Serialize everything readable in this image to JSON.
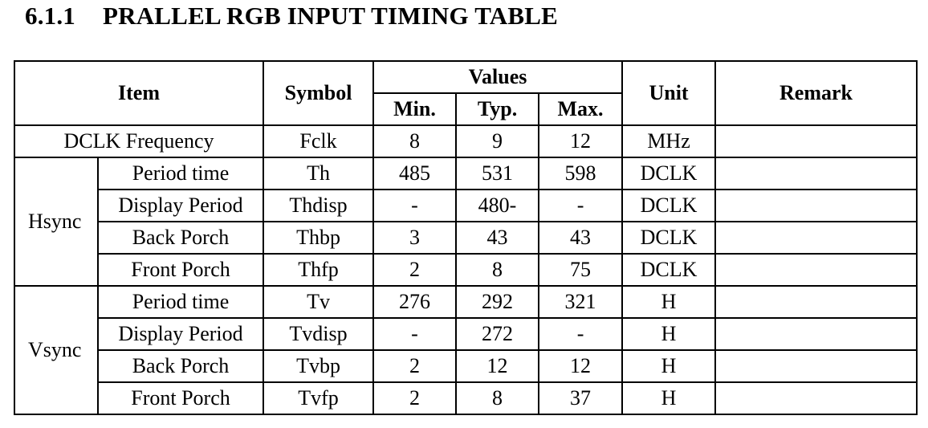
{
  "heading": {
    "number": "6.1.1",
    "title": "PRALLEL RGB INPUT TIMING TABLE"
  },
  "table": {
    "headers": {
      "item": "Item",
      "symbol": "Symbol",
      "values": "Values",
      "min": "Min.",
      "typ": "Typ.",
      "max": "Max.",
      "unit": "Unit",
      "remark": "Remark"
    },
    "dclk": {
      "item": "DCLK Frequency",
      "symbol": "Fclk",
      "min": "8",
      "typ": "9",
      "max": "12",
      "unit": "MHz",
      "remark": ""
    },
    "groups": [
      {
        "label": "Hsync",
        "rows": [
          {
            "item": "Period time",
            "symbol": "Th",
            "min": "485",
            "typ": "531",
            "max": "598",
            "unit": "DCLK",
            "remark": ""
          },
          {
            "item": "Display Period",
            "symbol": "Thdisp",
            "min": "-",
            "typ": "480-",
            "max": "-",
            "unit": "DCLK",
            "remark": ""
          },
          {
            "item": "Back Porch",
            "symbol": "Thbp",
            "min": "3",
            "typ": "43",
            "max": "43",
            "unit": "DCLK",
            "remark": ""
          },
          {
            "item": "Front Porch",
            "symbol": "Thfp",
            "min": "2",
            "typ": "8",
            "max": "75",
            "unit": "DCLK",
            "remark": ""
          }
        ]
      },
      {
        "label": "Vsync",
        "rows": [
          {
            "item": "Period time",
            "symbol": "Tv",
            "min": "276",
            "typ": "292",
            "max": "321",
            "unit": "H",
            "remark": ""
          },
          {
            "item": "Display Period",
            "symbol": "Tvdisp",
            "min": "-",
            "typ": "272",
            "max": "-",
            "unit": "H",
            "remark": ""
          },
          {
            "item": "Back Porch",
            "symbol": "Tvbp",
            "min": "2",
            "typ": "12",
            "max": "12",
            "unit": "H",
            "remark": ""
          },
          {
            "item": "Front Porch",
            "symbol": "Tvfp",
            "min": "2",
            "typ": "8",
            "max": "37",
            "unit": "H",
            "remark": ""
          }
        ]
      }
    ]
  }
}
